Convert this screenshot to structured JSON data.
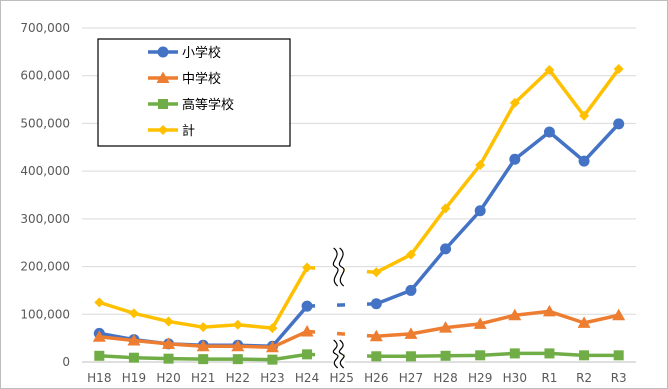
{
  "chart_data": {
    "type": "line",
    "categories": [
      "H18",
      "H19",
      "H20",
      "H21",
      "H22",
      "H23",
      "H24",
      "H25",
      "H26",
      "H27",
      "H28",
      "H29",
      "H30",
      "R1",
      "R2",
      "R3"
    ],
    "y_ticks": [
      "0",
      "100,000",
      "200,000",
      "300,000",
      "400,000",
      "500,000",
      "600,000",
      "700,000"
    ],
    "ylim": [
      0,
      700000
    ],
    "grid": true,
    "legend_position": "top-left",
    "break_category": "H25",
    "series": [
      {
        "name": "小学校",
        "color": "#4472C4",
        "marker": "circle",
        "values": [
          60000,
          47000,
          38000,
          35000,
          35000,
          33000,
          117000,
          null,
          122000,
          150000,
          237000,
          317000,
          425000,
          482000,
          421000,
          499000
        ]
      },
      {
        "name": "中学校",
        "color": "#ED7D31",
        "marker": "triangle",
        "values": [
          53000,
          45000,
          38000,
          33000,
          33000,
          31000,
          64000,
          null,
          54000,
          59000,
          72000,
          80000,
          98000,
          106000,
          82000,
          98000
        ]
      },
      {
        "name": "高等学校",
        "color": "#70AD47",
        "marker": "square",
        "values": [
          13000,
          9000,
          7000,
          6000,
          6000,
          5000,
          16000,
          null,
          12000,
          12000,
          13000,
          14000,
          18000,
          18000,
          14000,
          14000
        ]
      },
      {
        "name": "計",
        "color": "#FFC000",
        "marker": "diamond",
        "values": [
          125000,
          102000,
          85000,
          73000,
          78000,
          71000,
          198000,
          null,
          188000,
          225000,
          322000,
          413000,
          543000,
          612000,
          516000,
          614000
        ]
      }
    ]
  }
}
